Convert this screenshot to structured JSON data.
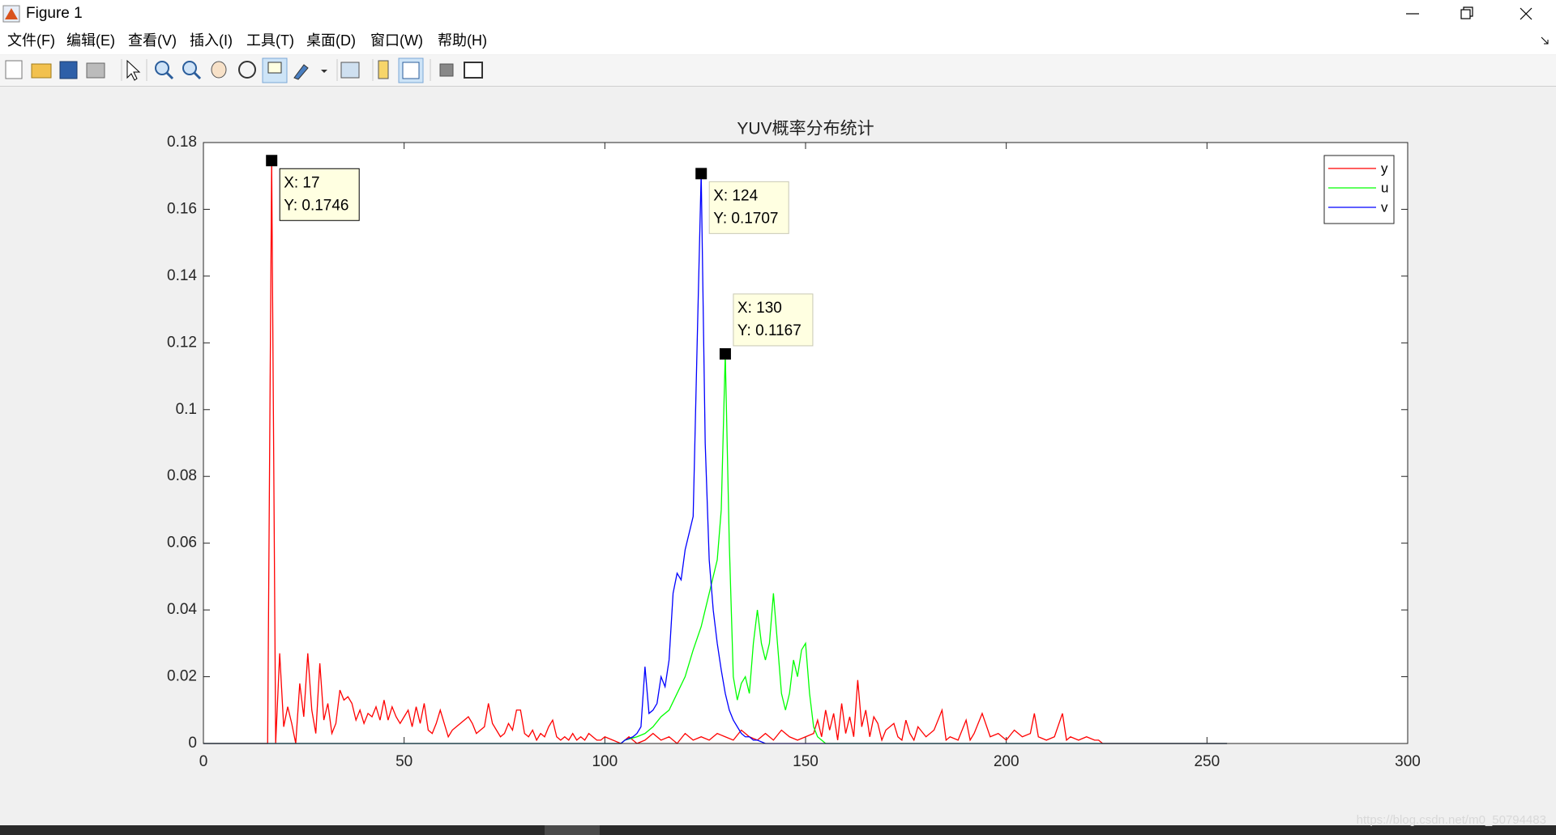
{
  "window": {
    "title": "Figure 1",
    "menu": [
      "文件(F)",
      "编辑(E)",
      "查看(V)",
      "插入(I)",
      "工具(T)",
      "桌面(D)",
      "窗口(W)",
      "帮助(H)"
    ],
    "watermark": "https://blog.csdn.net/m0_50794483"
  },
  "chart_data": {
    "type": "line",
    "title": "YUV概率分布统计",
    "xlim": [
      0,
      300
    ],
    "xticks": [
      0,
      50,
      100,
      150,
      200,
      250,
      300
    ],
    "ylim": [
      0,
      0.18
    ],
    "yticks": [
      0,
      0.02,
      0.04,
      0.06,
      0.08,
      0.1,
      0.12,
      0.14,
      0.16,
      0.18
    ],
    "grid": false,
    "legend_position": "upper-right",
    "series": [
      {
        "name": "y",
        "color": "#ff0000",
        "x": [
          0,
          16,
          17,
          18,
          19,
          20,
          21,
          22,
          23,
          24,
          25,
          26,
          27,
          28,
          29,
          30,
          31,
          32,
          33,
          34,
          35,
          36,
          37,
          38,
          39,
          40,
          41,
          42,
          43,
          44,
          45,
          46,
          47,
          48,
          49,
          50,
          51,
          52,
          53,
          54,
          55,
          56,
          57,
          58,
          59,
          60,
          61,
          62,
          63,
          64,
          65,
          66,
          67,
          68,
          69,
          70,
          71,
          72,
          73,
          74,
          75,
          76,
          77,
          78,
          79,
          80,
          81,
          82,
          83,
          84,
          85,
          86,
          87,
          88,
          89,
          90,
          91,
          92,
          93,
          94,
          95,
          96,
          97,
          98,
          99,
          100,
          102,
          104,
          106,
          108,
          110,
          112,
          114,
          116,
          118,
          120,
          122,
          124,
          126,
          128,
          130,
          132,
          134,
          136,
          138,
          140,
          142,
          144,
          146,
          148,
          150,
          152,
          153,
          154,
          155,
          156,
          157,
          158,
          159,
          160,
          161,
          162,
          163,
          164,
          165,
          166,
          167,
          168,
          169,
          170,
          172,
          173,
          174,
          175,
          176,
          177,
          178,
          180,
          182,
          184,
          185,
          186,
          188,
          190,
          191,
          192,
          194,
          196,
          198,
          200,
          202,
          204,
          206,
          207,
          208,
          210,
          212,
          214,
          215,
          216,
          218,
          220,
          222,
          223,
          224,
          226,
          255
        ],
        "values": [
          0,
          0,
          0.1746,
          0,
          0.027,
          0.005,
          0.011,
          0.006,
          0,
          0.018,
          0.008,
          0.027,
          0.01,
          0.003,
          0.024,
          0.007,
          0.012,
          0.003,
          0.006,
          0.016,
          0.013,
          0.014,
          0.012,
          0.007,
          0.01,
          0.006,
          0.009,
          0.008,
          0.011,
          0.007,
          0.013,
          0.007,
          0.011,
          0.008,
          0.006,
          0.008,
          0.01,
          0.005,
          0.011,
          0.006,
          0.012,
          0.004,
          0.003,
          0.006,
          0.01,
          0.006,
          0.002,
          0.004,
          0.005,
          0.006,
          0.007,
          0.008,
          0.006,
          0.003,
          0.004,
          0.005,
          0.012,
          0.006,
          0.004,
          0.002,
          0.003,
          0.006,
          0.004,
          0.01,
          0.01,
          0.003,
          0.002,
          0.004,
          0.001,
          0.003,
          0.002,
          0.005,
          0.007,
          0.002,
          0.001,
          0.002,
          0.001,
          0.003,
          0.001,
          0.002,
          0.001,
          0.003,
          0.002,
          0.001,
          0.001,
          0.002,
          0.001,
          0,
          0.002,
          0,
          0.001,
          0.003,
          0.001,
          0.002,
          0,
          0.003,
          0.001,
          0.002,
          0.001,
          0.003,
          0.002,
          0.001,
          0.004,
          0.002,
          0.001,
          0.003,
          0.001,
          0.004,
          0.002,
          0.001,
          0.002,
          0.003,
          0.007,
          0.002,
          0.01,
          0.004,
          0.009,
          0.001,
          0.012,
          0.003,
          0.008,
          0.002,
          0.019,
          0.005,
          0.01,
          0.002,
          0.008,
          0.006,
          0.001,
          0.004,
          0.006,
          0.002,
          0.001,
          0.007,
          0.003,
          0.001,
          0.005,
          0.002,
          0.004,
          0.01,
          0.001,
          0.002,
          0.001,
          0.007,
          0.001,
          0.003,
          0.009,
          0.002,
          0.003,
          0.001,
          0.004,
          0.002,
          0.003,
          0.009,
          0.002,
          0.001,
          0.002,
          0.009,
          0.001,
          0.002,
          0.001,
          0.002,
          0.001,
          0.001,
          0,
          0,
          0
        ]
      },
      {
        "name": "u",
        "color": "#00ff00",
        "x": [
          0,
          104,
          105,
          108,
          110,
          112,
          114,
          116,
          118,
          120,
          122,
          124,
          126,
          128,
          129,
          130,
          131,
          132,
          133,
          134,
          135,
          136,
          137,
          138,
          139,
          140,
          141,
          142,
          143,
          144,
          145,
          146,
          147,
          148,
          149,
          150,
          151,
          152,
          153,
          155,
          255
        ],
        "values": [
          0,
          0,
          0.001,
          0.002,
          0.003,
          0.005,
          0.008,
          0.01,
          0.015,
          0.02,
          0.028,
          0.035,
          0.045,
          0.055,
          0.07,
          0.1167,
          0.06,
          0.02,
          0.013,
          0.018,
          0.02,
          0.015,
          0.03,
          0.04,
          0.03,
          0.025,
          0.03,
          0.045,
          0.03,
          0.015,
          0.01,
          0.015,
          0.025,
          0.02,
          0.028,
          0.03,
          0.015,
          0.005,
          0.002,
          0,
          0
        ]
      },
      {
        "name": "v",
        "color": "#0000ff",
        "x": [
          0,
          104,
          105,
          107,
          108,
          109,
          110,
          111,
          112,
          113,
          114,
          115,
          116,
          117,
          118,
          119,
          120,
          121,
          122,
          123,
          124,
          125,
          126,
          127,
          128,
          129,
          130,
          131,
          132,
          133,
          134,
          135,
          136,
          137,
          138,
          140,
          255
        ],
        "values": [
          0,
          0,
          0.001,
          0.002,
          0.003,
          0.005,
          0.023,
          0.009,
          0.01,
          0.012,
          0.02,
          0.017,
          0.025,
          0.045,
          0.051,
          0.049,
          0.058,
          0.063,
          0.068,
          0.12,
          0.1707,
          0.09,
          0.055,
          0.04,
          0.03,
          0.022,
          0.015,
          0.01,
          0.007,
          0.005,
          0.003,
          0.002,
          0.002,
          0.001,
          0.001,
          0,
          0
        ]
      }
    ],
    "datatips": [
      {
        "x": 17,
        "y": 0.1746,
        "text": [
          "X: 17",
          "Y: 0.1746"
        ],
        "placement": "below-right"
      },
      {
        "x": 124,
        "y": 0.1707,
        "text": [
          "X: 124",
          "Y: 0.1707"
        ],
        "placement": "below-right"
      },
      {
        "x": 130,
        "y": 0.1167,
        "text": [
          "X: 130",
          "Y: 0.1167"
        ],
        "placement": "above-right"
      }
    ]
  }
}
